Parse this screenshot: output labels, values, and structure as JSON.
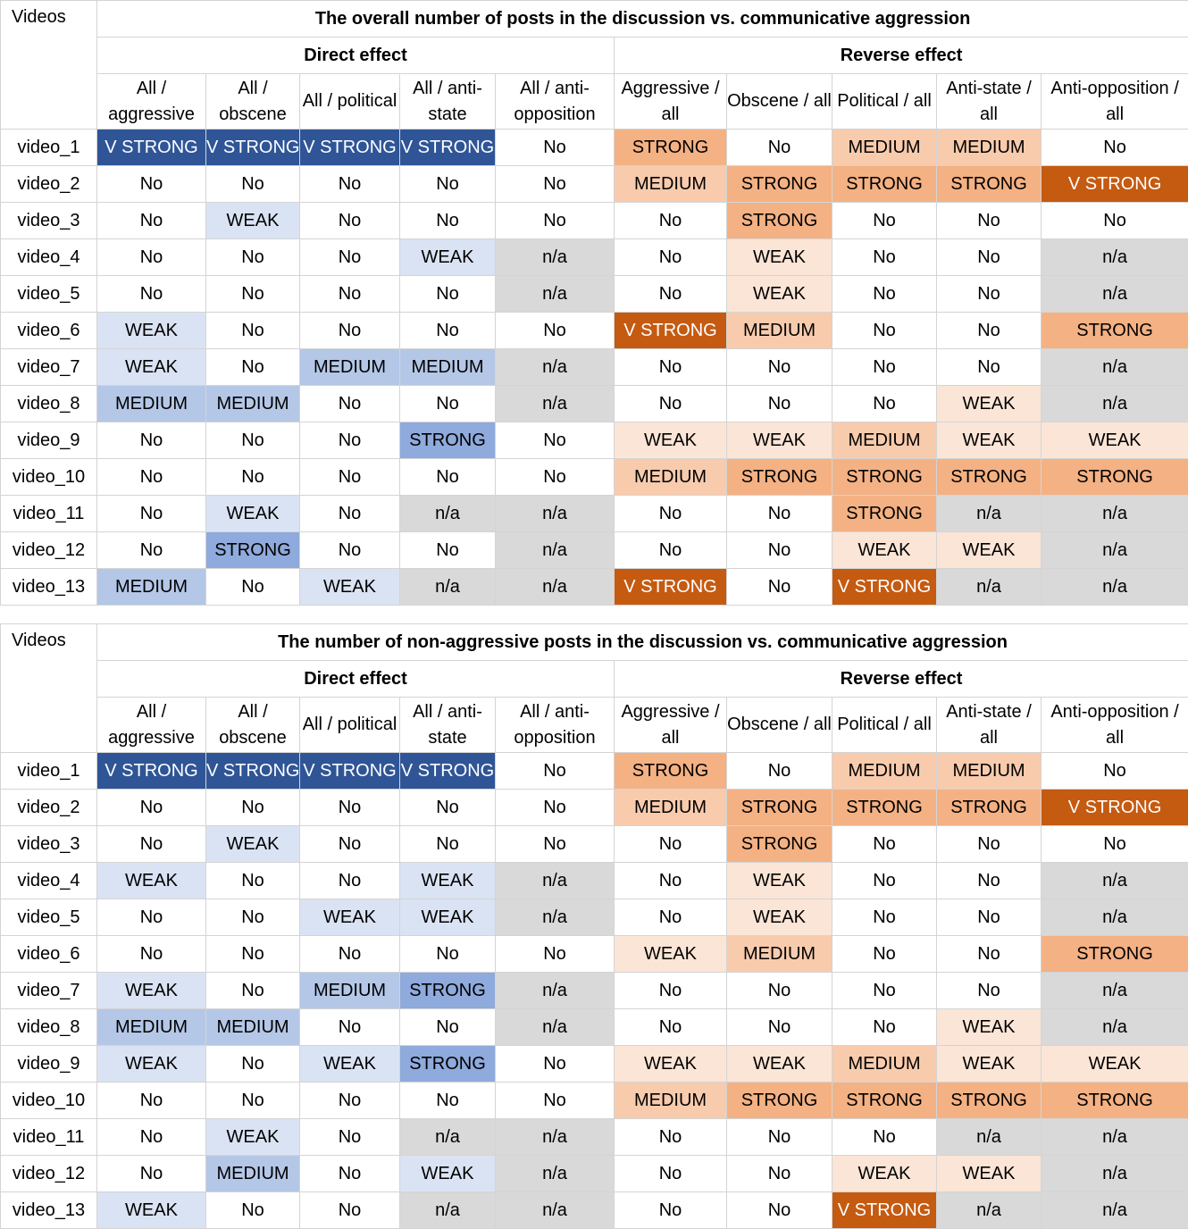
{
  "colors": {
    "weak_direct": "#dae3f3",
    "medium_direct": "#b4c7e7",
    "strong_direct": "#8faadc",
    "vstrong_direct": "#2f5597",
    "weak_reverse": "#fbe5d6",
    "medium_reverse": "#f8cbad",
    "strong_reverse": "#f4b183",
    "vstrong_reverse": "#c55a11",
    "not_applicable": "#d9d9d9"
  },
  "tables": [
    {
      "corner_label": "Videos",
      "title": "The overall number of posts in the discussion vs. communicative aggression",
      "direct_label": "Direct effect",
      "reverse_label": "Reverse effect",
      "columns": [
        "All / aggressive",
        "All / obscene",
        "All / political",
        "All / anti-state",
        "All / anti-opposition",
        "Aggressive / all",
        "Obscene / all",
        "Political / all",
        "Anti-state / all",
        "Anti-opposition / all"
      ],
      "rows": [
        {
          "name": "video_1",
          "cells": [
            "V STRONG",
            "V STRONG",
            "V STRONG",
            "V STRONG",
            "No",
            "STRONG",
            "No",
            "MEDIUM",
            "MEDIUM",
            "No"
          ]
        },
        {
          "name": "video_2",
          "cells": [
            "No",
            "No",
            "No",
            "No",
            "No",
            "MEDIUM",
            "STRONG",
            "STRONG",
            "STRONG",
            "V STRONG"
          ]
        },
        {
          "name": "video_3",
          "cells": [
            "No",
            "WEAK",
            "No",
            "No",
            "No",
            "No",
            "STRONG",
            "No",
            "No",
            "No"
          ]
        },
        {
          "name": "video_4",
          "cells": [
            "No",
            "No",
            "No",
            "WEAK",
            "n/a",
            "No",
            "WEAK",
            "No",
            "No",
            "n/a"
          ]
        },
        {
          "name": "video_5",
          "cells": [
            "No",
            "No",
            "No",
            "No",
            "n/a",
            "No",
            "WEAK",
            "No",
            "No",
            "n/a"
          ]
        },
        {
          "name": "video_6",
          "cells": [
            "WEAK",
            "No",
            "No",
            "No",
            "No",
            "V STRONG",
            "MEDIUM",
            "No",
            "No",
            "STRONG"
          ]
        },
        {
          "name": "video_7",
          "cells": [
            "WEAK",
            "No",
            "MEDIUM",
            "MEDIUM",
            "n/a",
            "No",
            "No",
            "No",
            "No",
            "n/a"
          ]
        },
        {
          "name": "video_8",
          "cells": [
            "MEDIUM",
            "MEDIUM",
            "No",
            "No",
            "n/a",
            "No",
            "No",
            "No",
            "WEAK",
            "n/a"
          ]
        },
        {
          "name": "video_9",
          "cells": [
            "No",
            "No",
            "No",
            "STRONG",
            "No",
            "WEAK",
            "WEAK",
            "MEDIUM",
            "WEAK",
            "WEAK"
          ]
        },
        {
          "name": "video_10",
          "cells": [
            "No",
            "No",
            "No",
            "No",
            "No",
            "MEDIUM",
            "STRONG",
            "STRONG",
            "STRONG",
            "STRONG"
          ]
        },
        {
          "name": "video_11",
          "cells": [
            "No",
            "WEAK",
            "No",
            "n/a",
            "n/a",
            "No",
            "No",
            "STRONG",
            "n/a",
            "n/a"
          ]
        },
        {
          "name": "video_12",
          "cells": [
            "No",
            "STRONG",
            "No",
            "No",
            "n/a",
            "No",
            "No",
            "WEAK",
            "WEAK",
            "n/a"
          ]
        },
        {
          "name": "video_13",
          "cells": [
            "MEDIUM",
            "No",
            "WEAK",
            "n/a",
            "n/a",
            "V STRONG",
            "No",
            "V STRONG",
            "n/a",
            "n/a"
          ]
        }
      ]
    },
    {
      "corner_label": "Videos",
      "title": "The number of non-aggressive posts in the discussion vs. communicative aggression",
      "direct_label": "Direct effect",
      "reverse_label": "Reverse effect",
      "columns": [
        "All / aggressive",
        "All / obscene",
        "All / political",
        "All / anti-state",
        "All / anti-opposition",
        "Aggressive / all",
        "Obscene / all",
        "Political / all",
        "Anti-state / all",
        "Anti-opposition / all"
      ],
      "rows": [
        {
          "name": "video_1",
          "cells": [
            "V STRONG",
            "V STRONG",
            "V STRONG",
            "V STRONG",
            "No",
            "STRONG",
            "No",
            "MEDIUM",
            "MEDIUM",
            "No"
          ]
        },
        {
          "name": "video_2",
          "cells": [
            "No",
            "No",
            "No",
            "No",
            "No",
            "MEDIUM",
            "STRONG",
            "STRONG",
            "STRONG",
            "V STRONG"
          ]
        },
        {
          "name": "video_3",
          "cells": [
            "No",
            "WEAK",
            "No",
            "No",
            "No",
            "No",
            "STRONG",
            "No",
            "No",
            "No"
          ]
        },
        {
          "name": "video_4",
          "cells": [
            "WEAK",
            "No",
            "No",
            "WEAK",
            "n/a",
            "No",
            "WEAK",
            "No",
            "No",
            "n/a"
          ]
        },
        {
          "name": "video_5",
          "cells": [
            "No",
            "No",
            "WEAK",
            "WEAK",
            "n/a",
            "No",
            "WEAK",
            "No",
            "No",
            "n/a"
          ]
        },
        {
          "name": "video_6",
          "cells": [
            "No",
            "No",
            "No",
            "No",
            "No",
            "WEAK",
            "MEDIUM",
            "No",
            "No",
            "STRONG"
          ]
        },
        {
          "name": "video_7",
          "cells": [
            "WEAK",
            "No",
            "MEDIUM",
            "STRONG",
            "n/a",
            "No",
            "No",
            "No",
            "No",
            "n/a"
          ]
        },
        {
          "name": "video_8",
          "cells": [
            "MEDIUM",
            "MEDIUM",
            "No",
            "No",
            "n/a",
            "No",
            "No",
            "No",
            "WEAK",
            "n/a"
          ]
        },
        {
          "name": "video_9",
          "cells": [
            "WEAK",
            "No",
            "WEAK",
            "STRONG",
            "No",
            "WEAK",
            "WEAK",
            "MEDIUM",
            "WEAK",
            "WEAK"
          ]
        },
        {
          "name": "video_10",
          "cells": [
            "No",
            "No",
            "No",
            "No",
            "No",
            "MEDIUM",
            "STRONG",
            "STRONG",
            "STRONG",
            "STRONG"
          ]
        },
        {
          "name": "video_11",
          "cells": [
            "No",
            "WEAK",
            "No",
            "n/a",
            "n/a",
            "No",
            "No",
            "No",
            "n/a",
            "n/a"
          ]
        },
        {
          "name": "video_12",
          "cells": [
            "No",
            "MEDIUM",
            "No",
            "WEAK",
            "n/a",
            "No",
            "No",
            "WEAK",
            "WEAK",
            "n/a"
          ]
        },
        {
          "name": "video_13",
          "cells": [
            "WEAK",
            "No",
            "No",
            "n/a",
            "n/a",
            "No",
            "No",
            "V STRONG",
            "n/a",
            "n/a"
          ]
        }
      ]
    }
  ]
}
